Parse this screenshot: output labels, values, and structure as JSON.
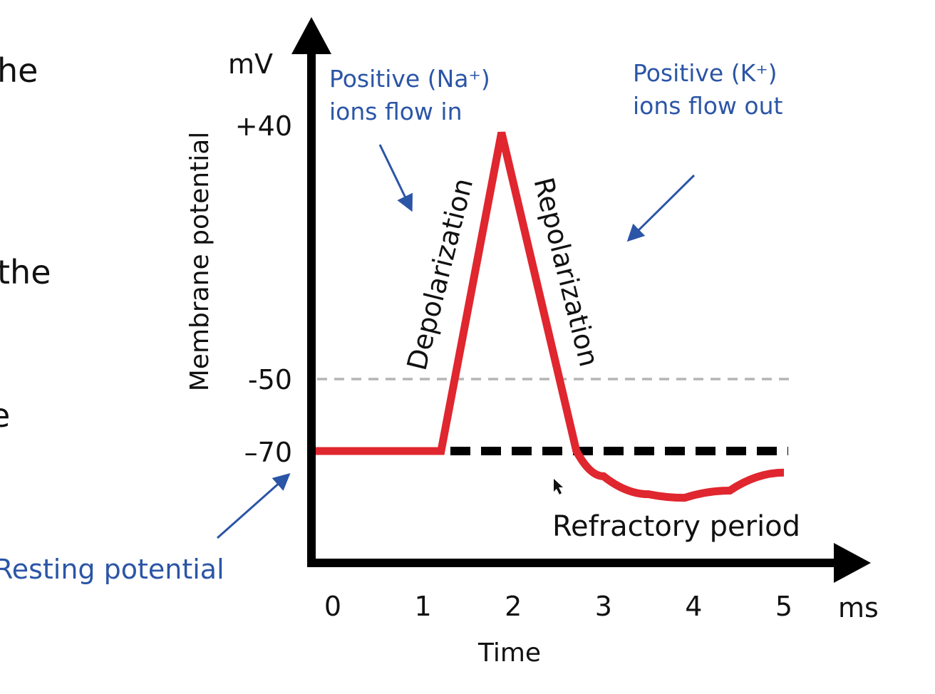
{
  "left_text_fragments": [
    "he",
    "the",
    "e"
  ],
  "chart_data": {
    "type": "line",
    "title": "",
    "xlabel": "Time",
    "x_unit": "ms",
    "ylabel": "Membrane potential",
    "y_unit": "mV",
    "x_ticks": [
      0,
      1,
      2,
      3,
      4,
      5
    ],
    "y_ticks": [
      {
        "value": 40,
        "label": "+40"
      },
      {
        "value": -50,
        "label": "-50"
      },
      {
        "value": -70,
        "label": "–70"
      }
    ],
    "series": [
      {
        "color": "#e0262e",
        "points": [
          [
            -0.2,
            -70
          ],
          [
            1.2,
            -70
          ],
          [
            1.87,
            40
          ],
          [
            2.7,
            -70
          ],
          [
            3.0,
            -77
          ],
          [
            3.5,
            -82
          ],
          [
            3.9,
            -83
          ],
          [
            4.4,
            -81
          ],
          [
            5.0,
            -76
          ]
        ]
      }
    ],
    "reference_lines": [
      {
        "value": -50,
        "style": "dashed",
        "color": "#b5b5b5"
      },
      {
        "value": -70,
        "style": "dashed",
        "color": "#000000"
      }
    ],
    "annotations": {
      "na_in": [
        "Positive (Na⁺)",
        "ions flow in"
      ],
      "k_out": [
        "Positive (K⁺)",
        "ions flow out"
      ],
      "depolarization": "Depolarization",
      "repolarization": "Repolarization",
      "refractory": "Refractory period",
      "resting": "Resting potential"
    },
    "annotation_color": "#2b55a6",
    "grid": false
  }
}
